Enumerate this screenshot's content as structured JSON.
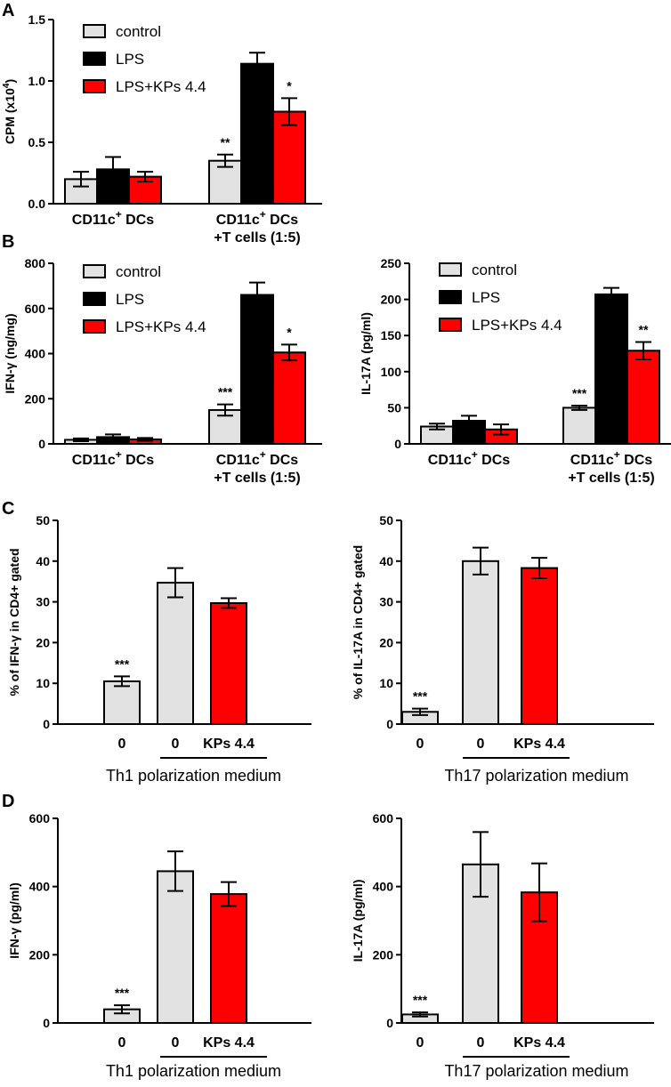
{
  "colors": {
    "control": "#e2e2e2",
    "LPS": "#000000",
    "LPSKPs": "#ff0000",
    "axis": "#000000"
  },
  "panels": {
    "A": "A",
    "B": "B",
    "C": "C",
    "D": "D"
  },
  "chart_data": [
    {
      "id": "A",
      "type": "bar",
      "ylabel_main": "CPM (x10",
      "ylabel_sup": "4",
      "ylabel_end": ")",
      "ylim": [
        0,
        1.5
      ],
      "yticks": [
        "0.0",
        "0.5",
        "1.0",
        "1.5"
      ],
      "ytick_values": [
        0,
        0.5,
        1.0,
        1.5
      ],
      "legend": [
        "control",
        "LPS",
        "LPS+KPs 4.4"
      ],
      "groups": [
        {
          "line1": "CD11c",
          "sup": "+",
          "line1_end": " DCs",
          "line2": "",
          "values": [
            0.2,
            0.28,
            0.22
          ],
          "errors": [
            0.06,
            0.1,
            0.04
          ],
          "sig": [
            "",
            "",
            ""
          ]
        },
        {
          "line1": "CD11c",
          "sup": "+",
          "line1_end": " DCs",
          "line2": "+T cells (1:5)",
          "values": [
            0.35,
            1.14,
            0.75
          ],
          "errors": [
            0.05,
            0.09,
            0.11
          ],
          "sig": [
            "**",
            "",
            "*"
          ]
        }
      ]
    },
    {
      "id": "B1",
      "type": "bar",
      "ylabel_main": "IFN-γ (ng/mg)",
      "ylabel_sup": "",
      "ylabel_end": "",
      "ylim": [
        0,
        800
      ],
      "yticks": [
        "0",
        "200",
        "400",
        "600",
        "800"
      ],
      "ytick_values": [
        0,
        200,
        400,
        600,
        800
      ],
      "legend": [
        "control",
        "LPS",
        "LPS+KPs 4.4"
      ],
      "groups": [
        {
          "line1": "CD11c",
          "sup": "+",
          "line1_end": " DCs",
          "line2": "",
          "values": [
            18,
            30,
            20
          ],
          "errors": [
            6,
            12,
            6
          ],
          "sig": [
            "",
            "",
            ""
          ]
        },
        {
          "line1": "CD11c",
          "sup": "+",
          "line1_end": " DCs",
          "line2": "+T cells (1:5)",
          "values": [
            150,
            660,
            405
          ],
          "errors": [
            25,
            55,
            35
          ],
          "sig": [
            "***",
            "",
            "*"
          ]
        }
      ]
    },
    {
      "id": "B2",
      "type": "bar",
      "ylabel_main": "IL-17A (pg/ml)",
      "ylabel_sup": "",
      "ylabel_end": "",
      "ylim": [
        0,
        250
      ],
      "yticks": [
        "0",
        "50",
        "100",
        "150",
        "200",
        "250"
      ],
      "ytick_values": [
        0,
        50,
        100,
        150,
        200,
        250
      ],
      "legend": [
        "control",
        "LPS",
        "LPS+KPs 4.4"
      ],
      "groups": [
        {
          "line1": "CD11c",
          "sup": "+",
          "line1_end": " DCs",
          "line2": "",
          "values": [
            24,
            32,
            20
          ],
          "errors": [
            4,
            7,
            7
          ],
          "sig": [
            "",
            "",
            ""
          ]
        },
        {
          "line1": "CD11c",
          "sup": "+",
          "line1_end": " DCs",
          "line2": "+T cells (1:5)",
          "values": [
            50,
            207,
            129
          ],
          "errors": [
            3,
            9,
            12
          ],
          "sig": [
            "***",
            "",
            "**"
          ]
        }
      ]
    },
    {
      "id": "C1",
      "type": "bar",
      "ylabel_main": "% of IFN-γ in CD4+ gated",
      "ylabel_sup": "",
      "ylabel_end": "",
      "ylim": [
        0,
        50
      ],
      "yticks": [
        "0",
        "10",
        "20",
        "30",
        "40",
        "50"
      ],
      "ytick_values": [
        0,
        10,
        20,
        30,
        40,
        50
      ],
      "categories": [
        "0",
        "0",
        "KPs 4.4"
      ],
      "values": [
        10.5,
        34.7,
        29.7
      ],
      "errors": [
        1.2,
        3.6,
        1.2
      ],
      "sig": [
        "***",
        "",
        ""
      ],
      "series_colors": [
        "control",
        "control",
        "LPSKPs"
      ],
      "bracket_label": "Th1 polarization medium"
    },
    {
      "id": "C2",
      "type": "bar",
      "ylabel_main": "% of IL-17A  in CD4+ gated",
      "ylabel_sup": "",
      "ylabel_end": "",
      "ylim": [
        0,
        50
      ],
      "yticks": [
        "0",
        "10",
        "20",
        "30",
        "40",
        "50"
      ],
      "ytick_values": [
        0,
        10,
        20,
        30,
        40,
        50
      ],
      "categories": [
        "0",
        "0",
        "KPs 4.4"
      ],
      "values": [
        3,
        40,
        38.3
      ],
      "errors": [
        0.8,
        3.3,
        2.5
      ],
      "sig": [
        "***",
        "",
        ""
      ],
      "series_colors": [
        "control",
        "control",
        "LPSKPs"
      ],
      "bracket_label": "Th17 polarization medium"
    },
    {
      "id": "D1",
      "type": "bar",
      "ylabel_main": "IFN-γ (pg/ml)",
      "ylabel_sup": "",
      "ylabel_end": "",
      "ylim": [
        0,
        600
      ],
      "yticks": [
        "0",
        "200",
        "400",
        "600"
      ],
      "ytick_values": [
        0,
        200,
        400,
        600
      ],
      "categories": [
        "0",
        "0",
        "KPs 4.4"
      ],
      "values": [
        40,
        445,
        378
      ],
      "errors": [
        12,
        58,
        35
      ],
      "sig": [
        "***",
        "",
        ""
      ],
      "series_colors": [
        "control",
        "control",
        "LPSKPs"
      ],
      "bracket_label": "Th1 polarization medium"
    },
    {
      "id": "D2",
      "type": "bar",
      "ylabel_main": "IL-17A (pg/ml)",
      "ylabel_sup": "",
      "ylabel_end": "",
      "ylim": [
        0,
        600
      ],
      "yticks": [
        "0",
        "200",
        "400",
        "600"
      ],
      "ytick_values": [
        0,
        200,
        400,
        600
      ],
      "categories": [
        "0",
        "0",
        "KPs 4.4"
      ],
      "values": [
        25,
        465,
        383
      ],
      "errors": [
        6,
        95,
        85
      ],
      "sig": [
        "***",
        "",
        ""
      ],
      "series_colors": [
        "control",
        "control",
        "LPSKPs"
      ],
      "bracket_label": "Th17 polarization medium"
    }
  ]
}
